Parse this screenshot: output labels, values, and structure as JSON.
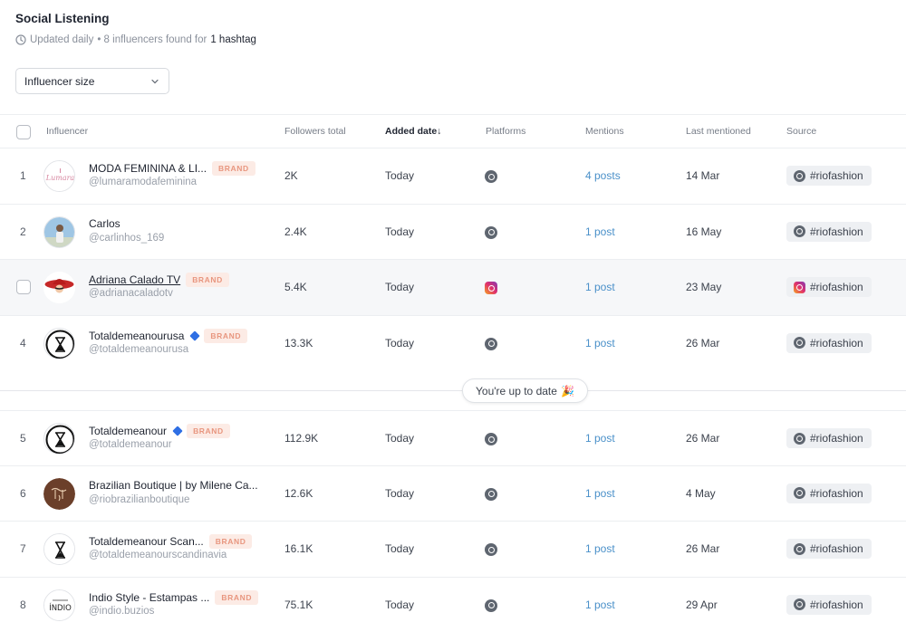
{
  "header": {
    "title": "Social Listening",
    "updated": "Updated daily",
    "found_prefix": "• 8 influencers found for",
    "hashtag_count": "1 hashtag"
  },
  "filter": {
    "label": "Influencer size"
  },
  "columns": {
    "influencer": "Influencer",
    "followers": "Followers total",
    "added": "Added date↓",
    "platforms": "Platforms",
    "mentions": "Mentions",
    "last": "Last mentioned",
    "source": "Source"
  },
  "rows": [
    {
      "num": "1",
      "name": "MODA FEMININA & LI...",
      "brand": "BRAND",
      "handle": "@lumaramodafeminina",
      "followers": "2K",
      "added": "Today",
      "mentions": "4 posts",
      "last": "14 Mar",
      "source": "#riofashion",
      "platform": "threads"
    },
    {
      "num": "2",
      "name": "Carlos",
      "brand": "",
      "handle": "@carlinhos_169",
      "followers": "2.4K",
      "added": "Today",
      "mentions": "1 post",
      "last": "16 May",
      "source": "#riofashion",
      "platform": "threads"
    },
    {
      "num": "",
      "name": "Adriana Calado TV",
      "brand": "BRAND",
      "handle": "@adrianacaladotv",
      "followers": "5.4K",
      "added": "Today",
      "mentions": "1 post",
      "last": "23 May",
      "source": "#riofashion",
      "platform": "instagram"
    },
    {
      "num": "4",
      "name": "Totaldemeanourusa",
      "brand": "BRAND",
      "handle": "@totaldemeanourusa",
      "followers": "13.3K",
      "added": "Today",
      "mentions": "1 post",
      "last": "26 Mar",
      "source": "#riofashion",
      "platform": "threads"
    },
    {
      "num": "5",
      "name": "Totaldemeanour",
      "brand": "BRAND",
      "handle": "@totaldemeanour",
      "followers": "112.9K",
      "added": "Today",
      "mentions": "1 post",
      "last": "26 Mar",
      "source": "#riofashion",
      "platform": "threads"
    },
    {
      "num": "6",
      "name": "Brazilian Boutique | by Milene Ca...",
      "brand": "",
      "handle": "@riobrazilianboutique",
      "followers": "12.6K",
      "added": "Today",
      "mentions": "1 post",
      "last": "4 May",
      "source": "#riofashion",
      "platform": "threads"
    },
    {
      "num": "7",
      "name": "Totaldemeanour Scan...",
      "brand": "BRAND",
      "handle": "@totaldemeanourscandinavia",
      "followers": "16.1K",
      "added": "Today",
      "mentions": "1 post",
      "last": "26 Mar",
      "source": "#riofashion",
      "platform": "threads"
    },
    {
      "num": "8",
      "name": "Indio Style - Estampas ...",
      "brand": "BRAND",
      "handle": "@indio.buzios",
      "followers": "75.1K",
      "added": "Today",
      "mentions": "1 post",
      "last": "29 Apr",
      "source": "#riofashion",
      "platform": "threads"
    }
  ],
  "divider": {
    "label": "You're up to date",
    "emoji": "🎉"
  },
  "colors": {
    "brand_badge_text": "#e8967f",
    "brand_badge_bg": "#fcebe5",
    "mention_link": "#4a90c9",
    "verified": "#2f6fe4"
  }
}
